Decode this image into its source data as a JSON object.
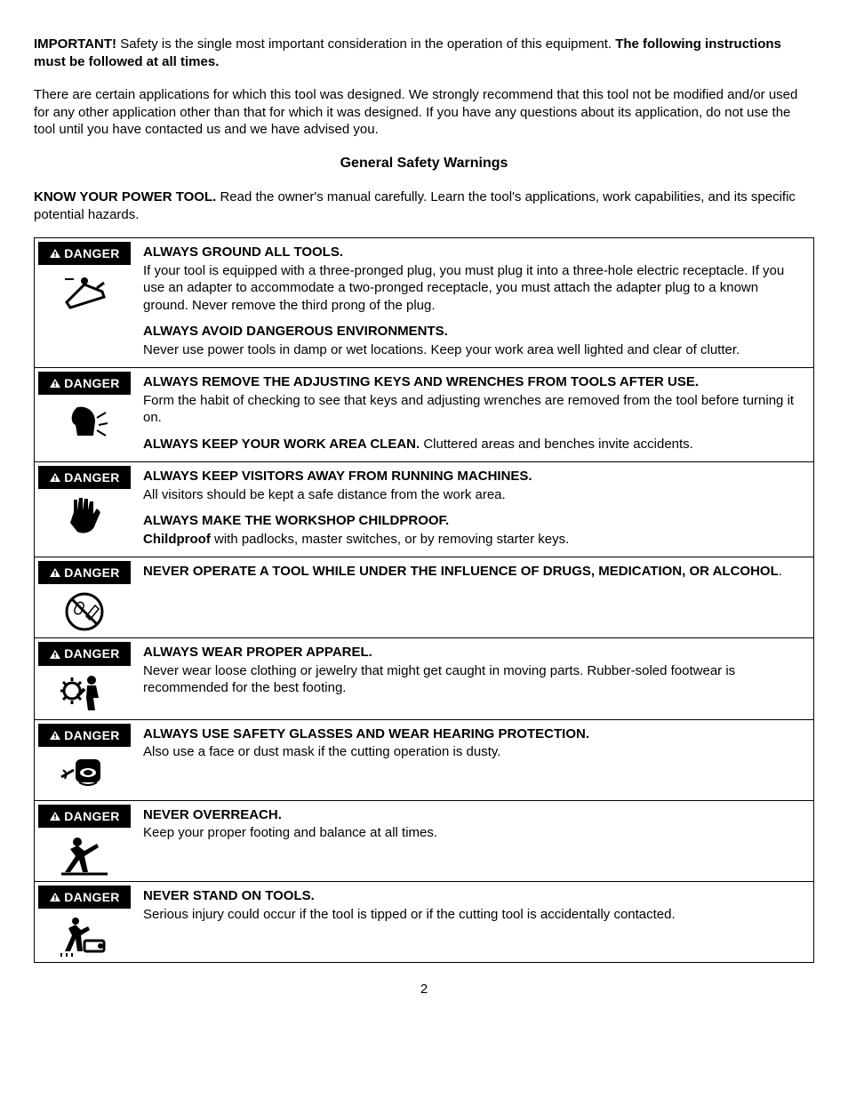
{
  "intro": {
    "important_label": "IMPORTANT!",
    "p1_text": " Safety is the single most important consideration in the operation of this equipment. ",
    "p1_bold_tail": "The following instructions must be followed at all times.",
    "p2": "There are certain applications for which this tool was designed. We strongly recommend that this tool not be modified and/or used for any other application other than that for which it was designed. If you have any questions about its application, do not use the tool until you have contacted us and we have advised you."
  },
  "section_heading": "General Safety Warnings",
  "know": {
    "lead": "KNOW YOUR POWER TOOL.",
    "rest": " Read the owner's manual carefully. Learn the tool's applications, work capabilities, and its specific potential hazards."
  },
  "danger_label": "DANGER",
  "rows": [
    {
      "icon": "grinder",
      "items": [
        {
          "heading": "ALWAYS GROUND ALL TOOLS.",
          "body": "If your tool is equipped with a three-pronged plug, you must plug it into a three-hole electric receptacle. If you use an adapter to accommodate a two-pronged receptacle, you must attach the adapter plug to a known ground. Never remove the third prong of the plug."
        },
        {
          "heading": "ALWAYS AVOID DANGEROUS ENVIRONMENTS.",
          "body": "Never use power tools in damp or wet locations. Keep your work area well lighted and clear of clutter."
        }
      ]
    },
    {
      "icon": "head-debris",
      "items": [
        {
          "heading": "ALWAYS REMOVE THE ADJUSTING KEYS AND WRENCHES FROM TOOLS AFTER USE.",
          "body": "Form the habit of checking to see that keys and adjusting wrenches are removed from the tool before turning it on."
        },
        {
          "heading_inline": "ALWAYS KEEP YOUR WORK AREA CLEAN.",
          "body_inline": " Cluttered areas and benches invite accidents."
        }
      ]
    },
    {
      "icon": "hand",
      "items": [
        {
          "heading": "ALWAYS KEEP VISITORS AWAY FROM RUNNING MACHINES.",
          "body": "All visitors should be kept a safe distance from the work area."
        },
        {
          "heading": "ALWAYS MAKE THE WORKSHOP CHILDPROOF.",
          "body_leading_bold": "Childproof",
          "body_rest": " with padlocks, master switches, or by removing starter keys."
        }
      ]
    },
    {
      "icon": "no-drugs",
      "items": [
        {
          "heading": "NEVER OPERATE A TOOL WHILE UNDER THE INFLUENCE OF DRUGS, MEDICATION, OR ALCOHOL",
          "heading_trailing_normal": "."
        }
      ]
    },
    {
      "icon": "gear-person",
      "items": [
        {
          "heading": "ALWAYS WEAR PROPER APPAREL.",
          "body": "Never wear loose clothing or jewelry that might get caught in moving parts. Rubber-soled footwear is recommended for the best footing."
        }
      ]
    },
    {
      "icon": "goggles",
      "items": [
        {
          "heading": "ALWAYS USE SAFETY GLASSES AND WEAR HEARING PROTECTION.",
          "body": "Also use a face or dust mask if the cutting operation is dusty."
        }
      ]
    },
    {
      "icon": "overreach",
      "items": [
        {
          "heading": "NEVER OVERREACH.",
          "body": "Keep your proper footing and balance at all times."
        }
      ]
    },
    {
      "icon": "stand-on-tool",
      "items": [
        {
          "heading": "NEVER STAND ON TOOLS.",
          "body": "Serious injury could occur if the tool is tipped or if the cutting tool is accidentally contacted."
        }
      ]
    }
  ],
  "page_number": "2",
  "colors": {
    "text": "#000000",
    "background": "#ffffff",
    "badge_bg": "#000000",
    "badge_fg": "#ffffff"
  }
}
